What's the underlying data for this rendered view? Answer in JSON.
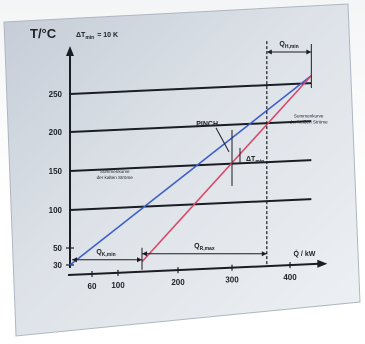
{
  "chart_data": {
    "type": "line",
    "title": "",
    "ylabel": "T/°C",
    "xlabel": "Q̇ / kW",
    "delta_t_min_label": "ΔT",
    "delta_t_min_sub": "min",
    "delta_t_min_value": "= 10 K",
    "ylim": [
      30,
      270
    ],
    "xlim": [
      40,
      460
    ],
    "y_ticks": [
      30,
      50,
      100,
      150,
      200,
      250
    ],
    "x_ticks": [
      60,
      100,
      200,
      300,
      400
    ],
    "grid": "horizontal",
    "series": [
      {
        "name": "Summenkurve der kalten Ströme",
        "color": "#3d5fcc",
        "x": [
          40,
          440
        ],
        "y": [
          30,
          260
        ]
      },
      {
        "name": "Summenkurve der heißen Ströme",
        "color": "#d94a6a",
        "x": [
          140,
          440
        ],
        "y": [
          30,
          260
        ]
      }
    ],
    "annotations": {
      "pinch": "PINCH",
      "delta_t_pinch": "ΔT",
      "delta_t_pinch_sub": "min",
      "q_cold": "Q",
      "q_cold_sub": "K,min",
      "q_heat_recovery": "Q",
      "q_heat_recovery_sub": "R,max",
      "q_hot": "Q",
      "q_hot_sub": "H,min"
    },
    "pinch_point": {
      "x": 300,
      "y": 160
    }
  },
  "colors": {
    "grid": "#1a1d24",
    "axis": "#1a1d24",
    "accent_blue": "#3d5fcc",
    "accent_red": "#d94a6a"
  }
}
